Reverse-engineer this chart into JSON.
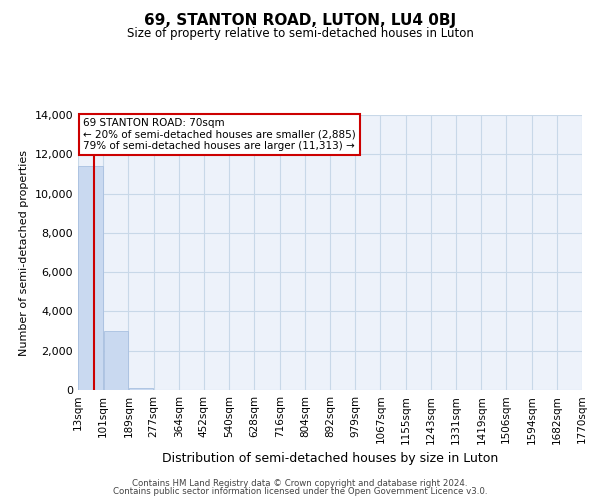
{
  "title": "69, STANTON ROAD, LUTON, LU4 0BJ",
  "subtitle": "Size of property relative to semi-detached houses in Luton",
  "xlabel": "Distribution of semi-detached houses by size in Luton",
  "ylabel": "Number of semi-detached properties",
  "bin_edges": [
    13,
    101,
    189,
    277,
    364,
    452,
    540,
    628,
    716,
    804,
    892,
    979,
    1067,
    1155,
    1243,
    1331,
    1419,
    1506,
    1594,
    1682,
    1770
  ],
  "bin_labels": [
    "13sqm",
    "101sqm",
    "189sqm",
    "277sqm",
    "364sqm",
    "452sqm",
    "540sqm",
    "628sqm",
    "716sqm",
    "804sqm",
    "892sqm",
    "979sqm",
    "1067sqm",
    "1155sqm",
    "1243sqm",
    "1331sqm",
    "1419sqm",
    "1506sqm",
    "1594sqm",
    "1682sqm",
    "1770sqm"
  ],
  "bar_values": [
    11400,
    3000,
    100,
    0,
    0,
    0,
    0,
    0,
    0,
    0,
    0,
    0,
    0,
    0,
    0,
    0,
    0,
    0,
    0,
    0
  ],
  "bar_color": "#c9d9f0",
  "bar_edgecolor": "#a8c0e0",
  "property_size": 70,
  "property_label": "69 STANTON ROAD: 70sqm",
  "annotation_line1": "← 20% of semi-detached houses are smaller (2,885)",
  "annotation_line2": "79% of semi-detached houses are larger (11,313) →",
  "vline_color": "#cc0000",
  "annotation_box_color": "#cc0000",
  "ylim": [
    0,
    14000
  ],
  "yticks": [
    0,
    2000,
    4000,
    6000,
    8000,
    10000,
    12000,
    14000
  ],
  "grid_color": "#c8d8e8",
  "background_color": "#edf2fa",
  "footer_line1": "Contains HM Land Registry data © Crown copyright and database right 2024.",
  "footer_line2": "Contains public sector information licensed under the Open Government Licence v3.0."
}
